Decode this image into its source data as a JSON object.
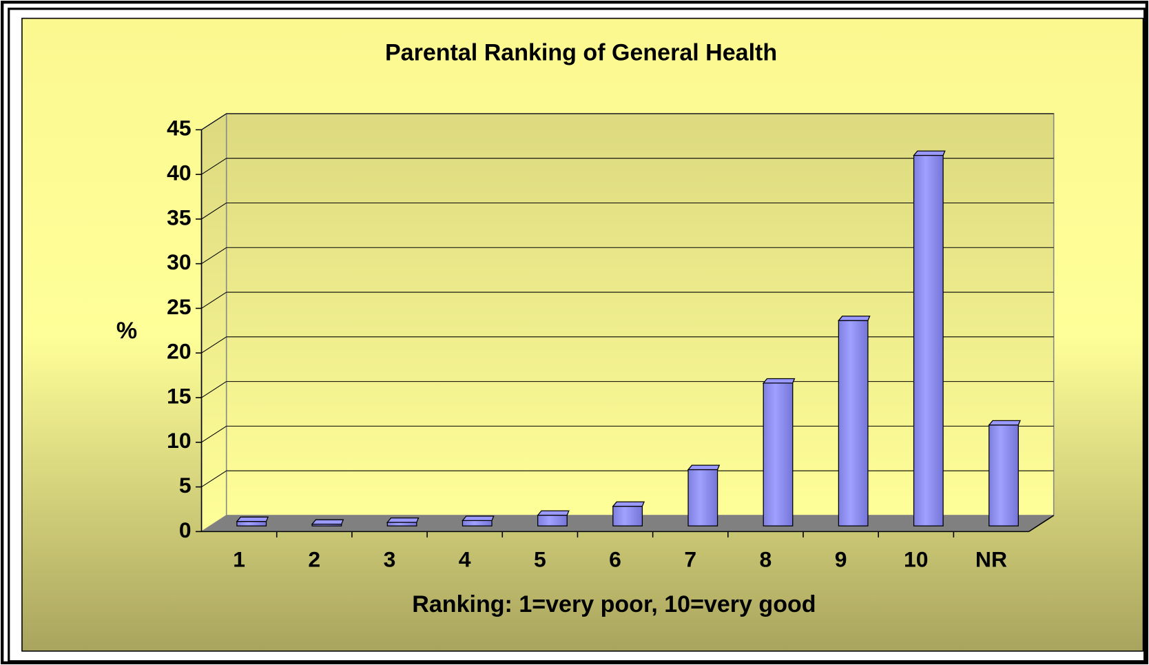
{
  "chart_data": {
    "type": "bar",
    "title": "Parental Ranking of General Health",
    "xlabel": "Ranking: 1=very poor, 10=very good",
    "ylabel": "%",
    "categories": [
      "1",
      "2",
      "3",
      "4",
      "5",
      "6",
      "7",
      "8",
      "9",
      "10",
      "NR"
    ],
    "values": [
      0.5,
      0.2,
      0.4,
      0.6,
      1.2,
      2.2,
      6.3,
      16,
      23,
      41.5,
      11.3
    ],
    "color": "#9999ff",
    "ylim": [
      0,
      45
    ],
    "yticks": [
      0,
      5,
      10,
      15,
      20,
      25,
      30,
      35,
      40,
      45
    ],
    "grid": true
  }
}
